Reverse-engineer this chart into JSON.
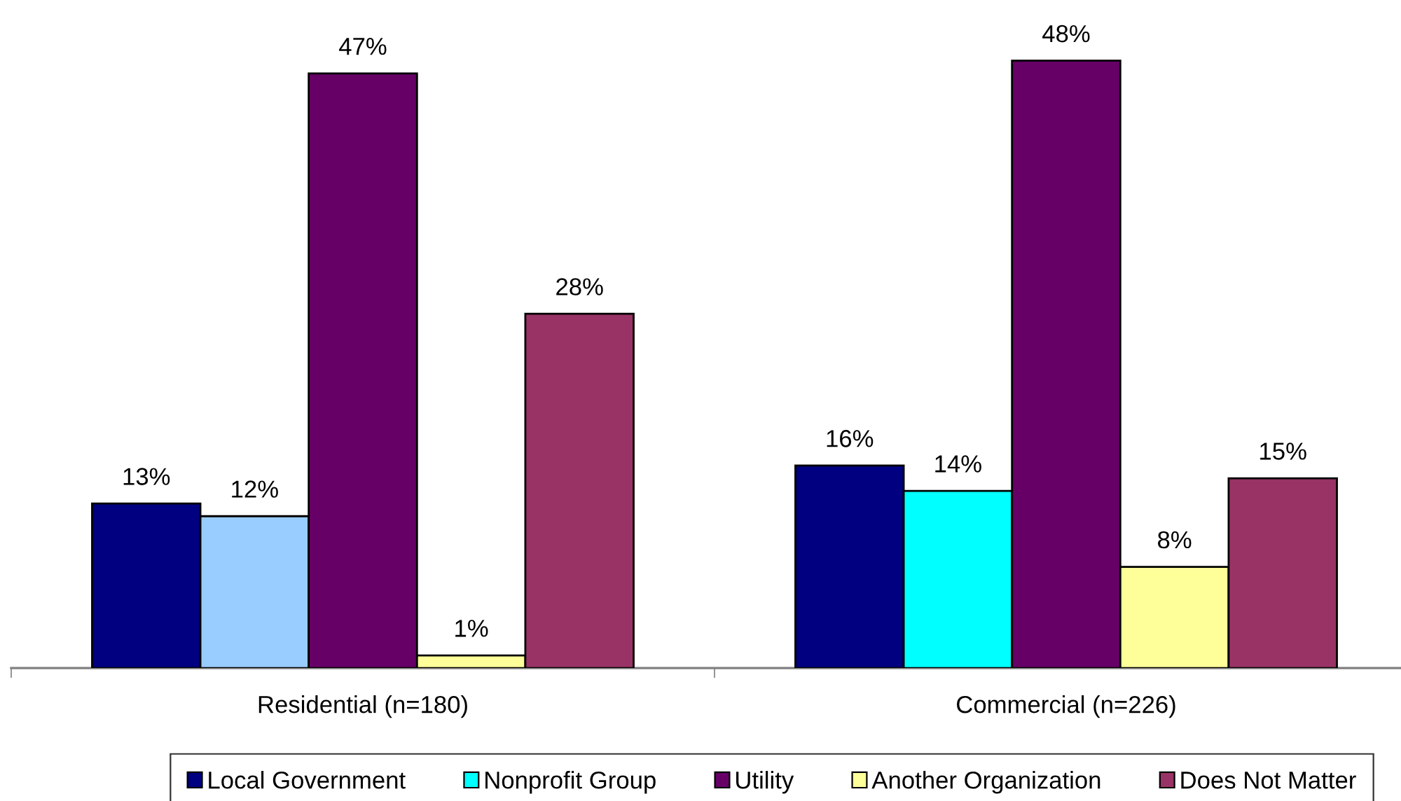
{
  "chart_data": {
    "type": "bar",
    "categories": [
      "Residential (n=180)",
      "Commercial (n=226)"
    ],
    "series": [
      {
        "name": "Local Government",
        "color": "#000080",
        "values": [
          13,
          16
        ],
        "value_labels": [
          "13%",
          "16%"
        ]
      },
      {
        "name": "Nonprofit Group",
        "color": "#00ffff",
        "colors": [
          "#99ccff",
          "#00ffff"
        ],
        "values": [
          12,
          14
        ],
        "value_labels": [
          "12%",
          "14%"
        ]
      },
      {
        "name": "Utility",
        "color": "#660066",
        "values": [
          47,
          48
        ],
        "value_labels": [
          "47%",
          "48%"
        ]
      },
      {
        "name": "Another Organization",
        "color": "#ffff99",
        "values": [
          1,
          8
        ],
        "value_labels": [
          "1%",
          "8%"
        ]
      },
      {
        "name": "Does Not Matter",
        "color": "#993366",
        "values": [
          28,
          15
        ],
        "value_labels": [
          "28%",
          "15%"
        ]
      }
    ],
    "legend": "bottom"
  }
}
